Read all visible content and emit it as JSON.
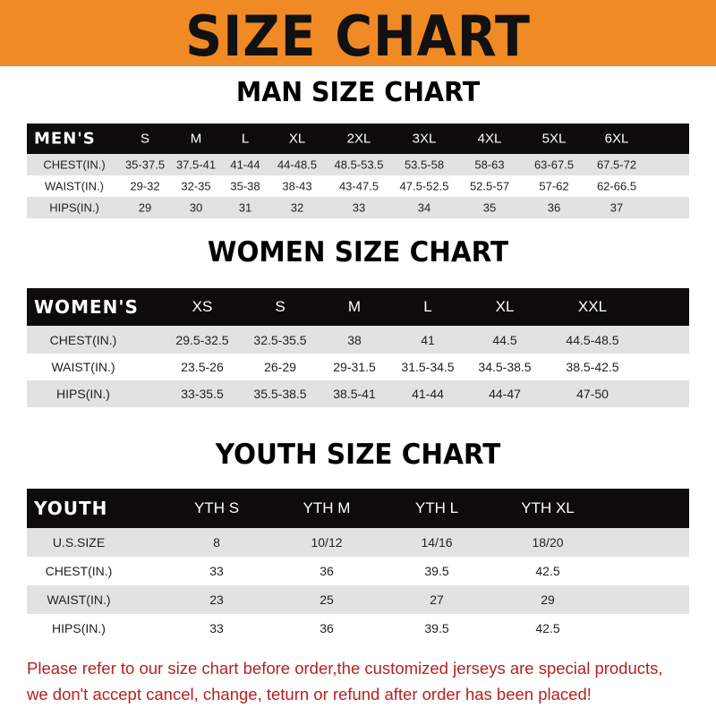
{
  "banner_title": "SIZE CHART",
  "men": {
    "title": "MAN SIZE CHART",
    "header_label": "MEN'S",
    "sizes": [
      "S",
      "M",
      "L",
      "XL",
      "2XL",
      "3XL",
      "4XL",
      "5XL",
      "6XL"
    ],
    "rows": [
      {
        "label": "CHEST(IN.)",
        "values": [
          "35-37.5",
          "37.5-41",
          "41-44",
          "44-48.5",
          "48.5-53.5",
          "53.5-58",
          "58-63",
          "63-67.5",
          "67.5-72"
        ]
      },
      {
        "label": "WAIST(IN.)",
        "values": [
          "29-32",
          "32-35",
          "35-38",
          "38-43",
          "43-47.5",
          "47.5-52.5",
          "52.5-57",
          "57-62",
          "62-66.5"
        ]
      },
      {
        "label": "HIPS(IN.)",
        "values": [
          "29",
          "30",
          "31",
          "32",
          "33",
          "34",
          "35",
          "36",
          "37"
        ]
      }
    ]
  },
  "women": {
    "title": "WOMEN SIZE CHART",
    "header_label": "WOMEN'S",
    "sizes": [
      "XS",
      "S",
      "M",
      "L",
      "XL",
      "XXL"
    ],
    "rows": [
      {
        "label": "CHEST(IN.)",
        "values": [
          "29.5-32.5",
          "32.5-35.5",
          "38",
          "41",
          "44.5",
          "44.5-48.5"
        ]
      },
      {
        "label": "WAIST(IN.)",
        "values": [
          "23.5-26",
          "26-29",
          "29-31.5",
          "31.5-34.5",
          "34.5-38.5",
          "38.5-42.5"
        ]
      },
      {
        "label": "HIPS(IN.)",
        "values": [
          "33-35.5",
          "35.5-38.5",
          "38.5-41",
          "41-44",
          "44-47",
          "47-50"
        ]
      }
    ]
  },
  "youth": {
    "title": "YOUTH SIZE CHART",
    "header_label": "YOUTH",
    "sizes": [
      "YTH S",
      "YTH M",
      "YTH L",
      "YTH XL"
    ],
    "rows": [
      {
        "label": "U.S.SIZE",
        "values": [
          "8",
          "10/12",
          "14/16",
          "18/20"
        ]
      },
      {
        "label": "CHEST(IN.)",
        "values": [
          "33",
          "36",
          "39.5",
          "42.5"
        ]
      },
      {
        "label": "WAIST(IN.)",
        "values": [
          "23",
          "25",
          "27",
          "29"
        ]
      },
      {
        "label": "HIPS(IN.)",
        "values": [
          "33",
          "36",
          "39.5",
          "42.5"
        ]
      }
    ]
  },
  "notice": {
    "line1": "Please refer to our size chart before order,the customized jerseys are special products,",
    "line2": "we don't accept cancel, change, teturn or refund after order has been placed!"
  }
}
